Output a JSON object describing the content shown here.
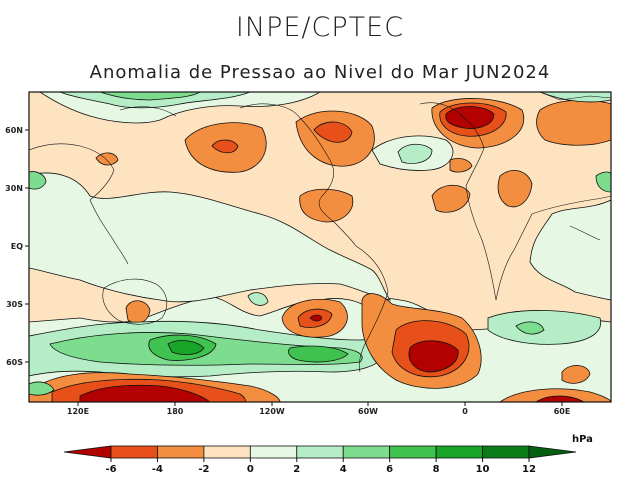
{
  "header": {
    "title": "INPE/CPTEC",
    "subtitle": "Anomalia de Pressao ao Nivel do Mar JUN2024"
  },
  "axes": {
    "lat_labels": [
      "60N",
      "30N",
      "EQ",
      "30S",
      "60S"
    ],
    "lon_labels": [
      "120E",
      "180",
      "120W",
      "60W",
      "0",
      "60E"
    ]
  },
  "colorbar": {
    "unit": "hPa",
    "ticks": [
      "-6",
      "-4",
      "-2",
      "0",
      "2",
      "4",
      "6",
      "8",
      "10",
      "12"
    ],
    "colors": [
      "#b30000",
      "#e8501a",
      "#f38d3f",
      "#fde3c0",
      "#e6f8e4",
      "#b4edc6",
      "#7ddd8e",
      "#3fc24f",
      "#18a528",
      "#0a7d18",
      "#046010"
    ]
  },
  "palette": {
    "ocean_base": "#e6f8e4",
    "pos_weak": "#fde3c0",
    "neg_med": "#f38d3f",
    "neg_strong": "#e8501a",
    "neg_max": "#b30000",
    "pos_2": "#b4edc6",
    "pos_4": "#7ddd8e",
    "pos_6": "#3fc24f",
    "pos_8": "#18a528"
  }
}
